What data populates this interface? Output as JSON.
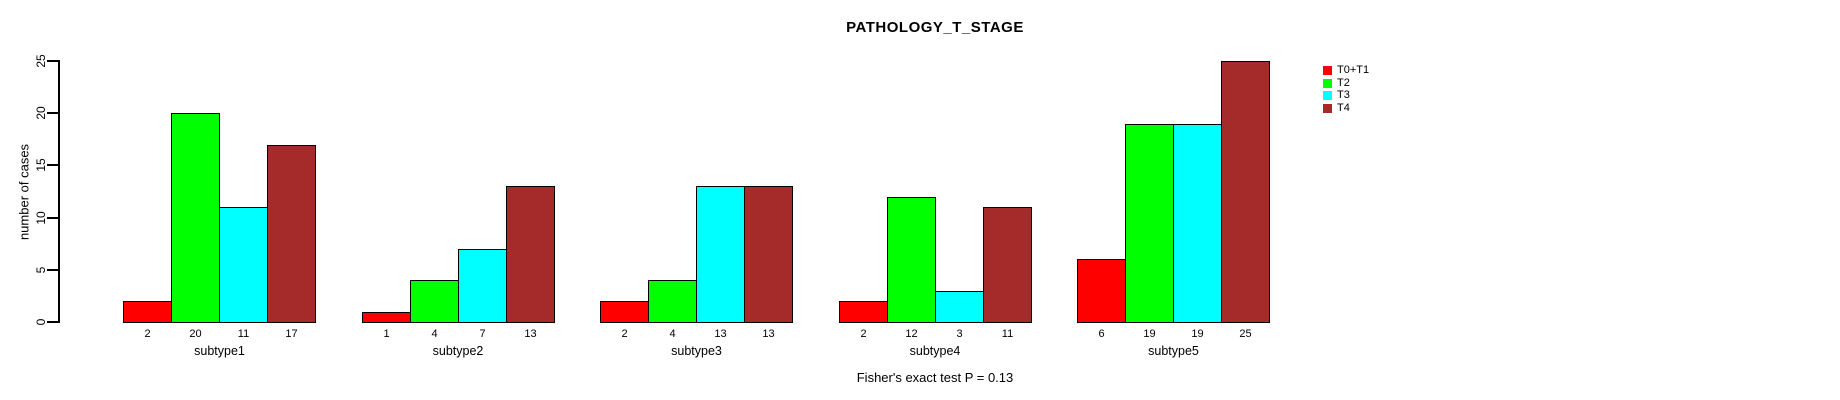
{
  "title": "PATHOLOGY_T_STAGE",
  "ylabel": "number of cases",
  "footnote": "Fisher's exact test P = 0.13",
  "legend": {
    "items": [
      {
        "label": "T0+T1",
        "color": "#FF0000"
      },
      {
        "label": "T2",
        "color": "#00FF00"
      },
      {
        "label": "T3",
        "color": "#00FFFF"
      },
      {
        "label": "T4",
        "color": "#A52A2A"
      }
    ]
  },
  "chart_data": {
    "type": "bar",
    "title": "PATHOLOGY_T_STAGE",
    "categories": [
      "subtype1",
      "subtype2",
      "subtype3",
      "subtype4",
      "subtype5"
    ],
    "series": [
      {
        "name": "T0+T1",
        "color": "#FF0000",
        "values": [
          2,
          1,
          2,
          2,
          6
        ]
      },
      {
        "name": "T2",
        "color": "#00FF00",
        "values": [
          20,
          4,
          4,
          12,
          19
        ]
      },
      {
        "name": "T3",
        "color": "#00FFFF",
        "values": [
          11,
          7,
          13,
          3,
          19
        ]
      },
      {
        "name": "T4",
        "color": "#A52A2A",
        "values": [
          17,
          13,
          13,
          11,
          25
        ]
      }
    ],
    "bar_value_labels": [
      [
        2,
        20,
        11,
        17
      ],
      [
        1,
        4,
        7,
        13
      ],
      [
        2,
        4,
        13,
        13
      ],
      [
        2,
        12,
        3,
        11
      ],
      [
        6,
        19,
        19,
        25
      ]
    ],
    "xlabel": "",
    "ylabel": "number of cases",
    "yticks": [
      0,
      5,
      10,
      15,
      20,
      25
    ],
    "ylim": [
      0,
      25
    ],
    "grid": false,
    "legend_position": "right",
    "annotation": "Fisher's exact test P = 0.13",
    "axis_color": "#000000",
    "bar_border_color": "#000000"
  }
}
